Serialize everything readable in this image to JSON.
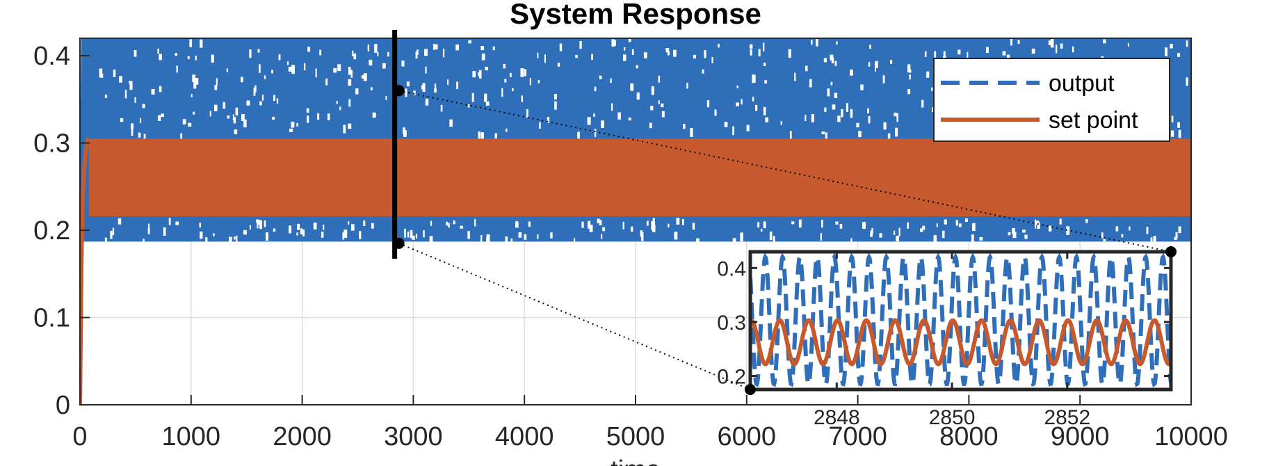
{
  "chart_data": {
    "type": "line",
    "title": "System Response",
    "xlabel": "time",
    "ylabel": "",
    "xlim": [
      0,
      10000
    ],
    "ylim": [
      0,
      0.42
    ],
    "x_ticks": [
      "0",
      "1000",
      "2000",
      "3000",
      "4000",
      "5000",
      "6000",
      "7000",
      "8000",
      "9000",
      "10000"
    ],
    "y_ticks": [
      "0",
      "0.1",
      "0.2",
      "0.3",
      "0.4"
    ],
    "grid": true,
    "legend_position": "top-right",
    "series": [
      {
        "name": "output",
        "style": "dashed",
        "color": "#2f6fba",
        "description_values": {
          "rise_end_time": 30,
          "band_min": 0.187,
          "band_max": 0.42
        }
      },
      {
        "name": "set point",
        "style": "solid",
        "color": "#c65a2e",
        "description_values": {
          "rise_end_time": 80,
          "band_min": 0.216,
          "band_max": 0.305
        }
      }
    ],
    "zoom_marker": {
      "time": 2870,
      "y_range": [
        0.185,
        0.36
      ]
    },
    "inset": {
      "xlim": [
        2846.5,
        2853.8
      ],
      "ylim": [
        0.175,
        0.43
      ],
      "x_ticks": [
        "2848",
        "2850",
        "2852"
      ],
      "y_ticks": [
        "0.2",
        "0.3",
        "0.4"
      ],
      "output_period": 0.3,
      "output_min": 0.185,
      "output_max": 0.42,
      "setpoint_period": 0.5,
      "setpoint_min": 0.222,
      "setpoint_max": 0.303
    }
  }
}
